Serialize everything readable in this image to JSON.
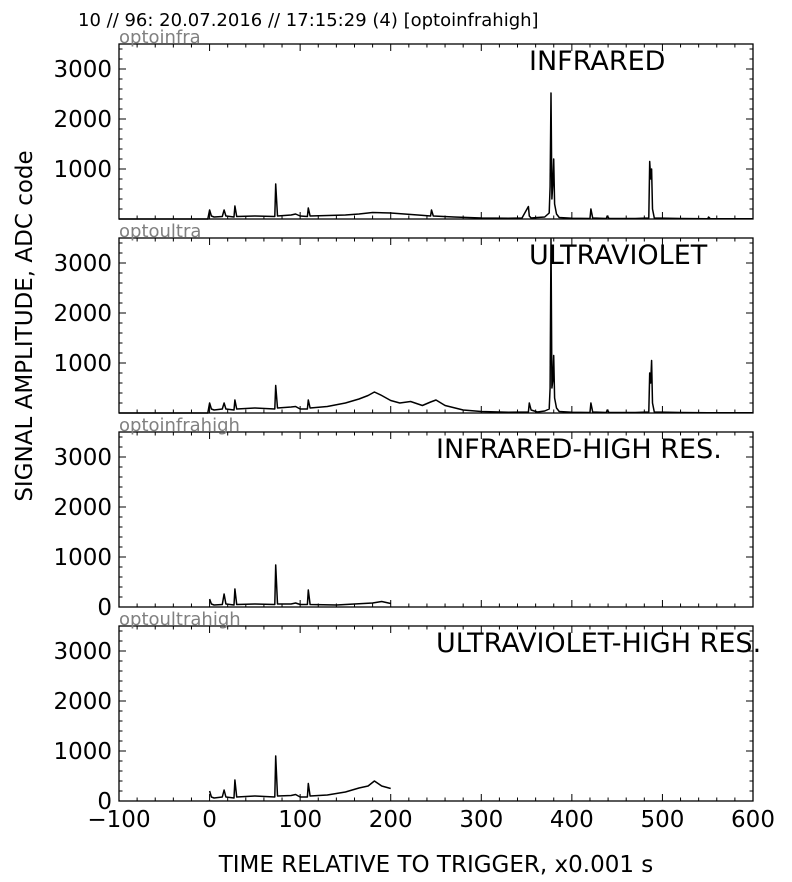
{
  "header": {
    "title": "10 // 96:   20.07.2016 // 17:15:29 (4)  [optoinfrahigh]"
  },
  "axes": {
    "ylabel": "SIGNAL AMPLITUDE,  ADC code",
    "xlabel": "TIME RELATIVE TO TRIGGER,   x0.001 s",
    "xlim": [
      -100,
      600
    ],
    "xticks": [
      -100,
      0,
      100,
      200,
      300,
      400,
      500,
      600
    ],
    "xtick_labels": [
      "−100",
      "0",
      "100",
      "200",
      "300",
      "400",
      "500",
      "600"
    ]
  },
  "colors": {
    "trace": "#000000",
    "channel_label": "#808080",
    "frame": "#000000"
  },
  "chart_data": [
    {
      "type": "line",
      "channel": "optoinfra",
      "title": "INFRARED",
      "ylim": [
        0,
        3500
      ],
      "yticks": [
        1000,
        2000,
        3000
      ],
      "x": [
        -100,
        -2,
        0,
        2,
        5,
        14,
        16,
        18,
        27,
        28,
        30,
        50,
        72,
        73,
        75,
        90,
        95,
        100,
        108,
        109,
        111,
        150,
        165,
        180,
        200,
        215,
        230,
        244,
        245,
        247,
        270,
        300,
        330,
        345,
        352,
        353,
        355,
        362,
        370,
        375,
        376,
        377,
        378,
        379,
        380,
        381,
        383,
        386,
        400,
        420,
        421,
        423,
        438,
        439,
        441,
        470,
        485,
        486,
        487,
        488,
        489,
        491,
        520,
        550,
        551,
        553,
        600
      ],
      "y": [
        0,
        0,
        180,
        60,
        40,
        50,
        180,
        60,
        40,
        260,
        50,
        60,
        50,
        700,
        60,
        80,
        100,
        60,
        50,
        220,
        60,
        80,
        100,
        130,
        120,
        100,
        80,
        60,
        180,
        60,
        40,
        20,
        15,
        20,
        250,
        60,
        20,
        30,
        40,
        120,
        650,
        2520,
        400,
        700,
        1200,
        300,
        100,
        30,
        15,
        10,
        200,
        20,
        10,
        60,
        10,
        10,
        20,
        1150,
        800,
        1000,
        200,
        20,
        10,
        5,
        40,
        5,
        5
      ]
    },
    {
      "type": "line",
      "channel": "optoultra",
      "title": "ULTRAVIOLET",
      "ylim": [
        0,
        3500
      ],
      "yticks": [
        1000,
        2000,
        3000
      ],
      "x": [
        -100,
        -2,
        0,
        2,
        5,
        14,
        16,
        18,
        27,
        28,
        30,
        50,
        72,
        73,
        75,
        90,
        95,
        100,
        108,
        109,
        111,
        130,
        150,
        165,
        175,
        182,
        190,
        200,
        210,
        222,
        235,
        244,
        250,
        260,
        280,
        300,
        330,
        352,
        353,
        355,
        362,
        370,
        375,
        376,
        377,
        378,
        379,
        380,
        381,
        383,
        386,
        400,
        420,
        421,
        423,
        438,
        439,
        441,
        470,
        485,
        486,
        487,
        488,
        489,
        491,
        520,
        550,
        600
      ],
      "y": [
        0,
        0,
        200,
        80,
        60,
        80,
        200,
        80,
        60,
        260,
        80,
        100,
        80,
        550,
        100,
        120,
        130,
        80,
        80,
        260,
        100,
        130,
        200,
        280,
        350,
        420,
        350,
        250,
        200,
        230,
        150,
        220,
        260,
        150,
        60,
        30,
        15,
        20,
        200,
        60,
        20,
        40,
        80,
        500,
        3480,
        500,
        650,
        1150,
        300,
        100,
        30,
        15,
        10,
        200,
        20,
        10,
        60,
        10,
        10,
        20,
        800,
        600,
        1050,
        200,
        20,
        10,
        5,
        5
      ]
    },
    {
      "type": "line",
      "channel": "optoinfrahigh",
      "title": "INFRARED-HIGH RES.",
      "ylim": [
        0,
        3500
      ],
      "yticks": [
        0,
        1000,
        2000,
        3000
      ],
      "x": [
        0,
        2,
        5,
        14,
        16,
        18,
        27,
        28,
        30,
        50,
        72,
        73,
        75,
        90,
        95,
        100,
        108,
        109,
        111,
        140,
        160,
        180,
        190,
        200
      ],
      "y": [
        160,
        60,
        40,
        50,
        260,
        60,
        40,
        360,
        50,
        60,
        50,
        840,
        60,
        60,
        80,
        50,
        50,
        340,
        50,
        40,
        60,
        80,
        110,
        70
      ]
    },
    {
      "type": "line",
      "channel": "optoultrahigh",
      "title": "ULTRAVIOLET-HIGH RES.",
      "ylim": [
        0,
        3500
      ],
      "yticks": [
        0,
        1000,
        2000,
        3000
      ],
      "x": [
        0,
        2,
        5,
        14,
        16,
        18,
        27,
        28,
        30,
        50,
        72,
        73,
        75,
        90,
        95,
        100,
        108,
        109,
        111,
        130,
        150,
        165,
        175,
        182,
        190,
        200
      ],
      "y": [
        200,
        80,
        60,
        80,
        220,
        80,
        60,
        420,
        80,
        100,
        80,
        900,
        100,
        110,
        130,
        80,
        80,
        350,
        100,
        120,
        180,
        260,
        300,
        400,
        300,
        250
      ]
    }
  ]
}
